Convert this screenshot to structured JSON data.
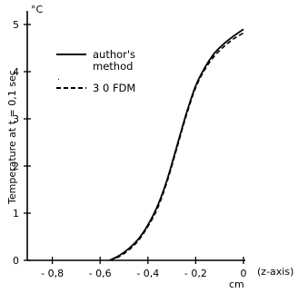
{
  "chart_data": {
    "type": "line",
    "title": "",
    "ylabel": "Temperature at  t = 0,1 sec",
    "yunit": "°C",
    "xlabel_unit": "cm",
    "xlabel_axis": "(z-axis)",
    "xlim": [
      -0.9,
      0.02
    ],
    "ylim": [
      0,
      5.3
    ],
    "xticks": [
      -0.8,
      -0.6,
      -0.4,
      -0.2,
      0
    ],
    "xtick_labels": [
      "- 0,8",
      "- 0,6",
      "- 0,4",
      "- 0,2",
      "0"
    ],
    "yticks": [
      0,
      1,
      2,
      3,
      4,
      5
    ],
    "ytick_labels": [
      "0",
      "1",
      "2",
      "3",
      "4",
      "5"
    ],
    "grid": false,
    "legend_position": "top-left",
    "series": [
      {
        "name": "author's method",
        "style": "solid",
        "x": [
          -0.56,
          -0.52,
          -0.48,
          -0.44,
          -0.4,
          -0.36,
          -0.32,
          -0.28,
          -0.24,
          -0.2,
          -0.16,
          -0.12,
          -0.08,
          -0.04,
          0.0
        ],
        "y": [
          0.0,
          0.1,
          0.25,
          0.45,
          0.75,
          1.15,
          1.7,
          2.4,
          3.1,
          3.7,
          4.1,
          4.4,
          4.6,
          4.76,
          4.9
        ]
      },
      {
        "name": "3D FDM",
        "style": "dashed",
        "x": [
          -0.56,
          -0.52,
          -0.48,
          -0.44,
          -0.4,
          -0.36,
          -0.32,
          -0.28,
          -0.24,
          -0.2,
          -0.16,
          -0.12,
          -0.08,
          -0.04,
          0.0
        ],
        "y": [
          0.0,
          0.08,
          0.22,
          0.42,
          0.72,
          1.1,
          1.66,
          2.36,
          3.06,
          3.66,
          4.06,
          4.34,
          4.54,
          4.7,
          4.82
        ]
      }
    ]
  },
  "legend": {
    "line1": "author's",
    "line2": "method",
    "line3": "3 0  FDM"
  }
}
